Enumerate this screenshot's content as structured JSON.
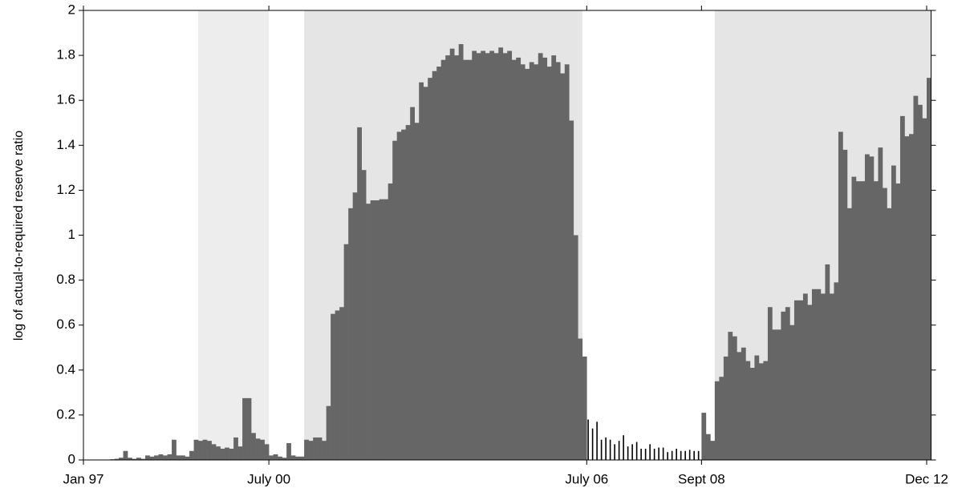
{
  "chart_data": {
    "type": "bar",
    "ylabel": "log of actual-to-required reserve ratio",
    "categories": [
      "Jan 97",
      null,
      null,
      null,
      null,
      null,
      null,
      null,
      null,
      null,
      null,
      null,
      null,
      null,
      null,
      null,
      null,
      null,
      null,
      null,
      null,
      null,
      null,
      null,
      null,
      null,
      null,
      null,
      null,
      null,
      null,
      null,
      null,
      null,
      null,
      null,
      null,
      null,
      null,
      null,
      null,
      null,
      "July 00",
      null,
      null,
      null,
      null,
      null,
      null,
      null,
      null,
      null,
      null,
      null,
      null,
      null,
      null,
      null,
      null,
      null,
      null,
      null,
      null,
      null,
      null,
      null,
      null,
      null,
      null,
      null,
      null,
      null,
      null,
      null,
      null,
      null,
      null,
      null,
      null,
      null,
      null,
      null,
      null,
      null,
      null,
      null,
      null,
      null,
      null,
      null,
      null,
      null,
      null,
      null,
      null,
      null,
      null,
      null,
      null,
      null,
      null,
      null,
      null,
      null,
      null,
      null,
      null,
      null,
      null,
      null,
      null,
      null,
      null,
      null,
      "July 06",
      null,
      null,
      null,
      null,
      null,
      null,
      null,
      null,
      null,
      null,
      null,
      null,
      null,
      null,
      null,
      null,
      null,
      null,
      null,
      null,
      null,
      null,
      null,
      null,
      null,
      "Sept 08",
      null,
      null,
      null,
      null,
      null,
      null,
      null,
      null,
      null,
      null,
      null,
      null,
      null,
      null,
      null,
      null,
      null,
      null,
      null,
      null,
      null,
      null,
      null,
      null,
      null,
      null,
      null,
      null,
      null,
      null,
      null,
      null,
      null,
      null,
      null,
      null,
      null,
      null,
      null,
      null,
      null,
      null,
      null,
      null,
      null,
      null,
      null,
      null,
      null,
      null,
      "Dec 12"
    ],
    "values": [
      0,
      0,
      0,
      0,
      0,
      0,
      0.003,
      0.005,
      0.01,
      0.04,
      0.01,
      0.005,
      0.01,
      0.005,
      0.02,
      0.015,
      0.02,
      0.025,
      0.02,
      0.025,
      0.09,
      0.02,
      0.02,
      0.015,
      0.04,
      0.09,
      0.085,
      0.09,
      0.085,
      0.07,
      0.06,
      0.05,
      0.055,
      0.05,
      0.1,
      0.06,
      0.275,
      0.275,
      0.12,
      0.095,
      0.09,
      0.07,
      0.02,
      0.025,
      0.015,
      0.01,
      0.075,
      0.02,
      0.015,
      0.015,
      0.09,
      0.085,
      0.1,
      0.1,
      0.085,
      0.24,
      0.65,
      0.665,
      0.68,
      0.96,
      1.12,
      1.19,
      1.48,
      1.29,
      1.14,
      1.155,
      1.155,
      1.16,
      1.16,
      1.23,
      1.42,
      1.46,
      1.47,
      1.49,
      1.57,
      1.5,
      1.68,
      1.66,
      1.7,
      1.73,
      1.75,
      1.78,
      1.8,
      1.83,
      1.8,
      1.85,
      1.78,
      1.78,
      1.82,
      1.81,
      1.82,
      1.81,
      1.82,
      1.81,
      1.835,
      1.81,
      1.82,
      1.78,
      1.79,
      1.76,
      1.74,
      1.77,
      1.76,
      1.81,
      1.79,
      1.75,
      1.8,
      1.77,
      1.72,
      1.76,
      1.51,
      1.0,
      0.54,
      0.46,
      0.18,
      0.14,
      0.17,
      0.09,
      0.1,
      0.09,
      0.07,
      0.085,
      0.11,
      0.06,
      0.07,
      0.08,
      0.05,
      0.05,
      0.07,
      0.05,
      0.055,
      0.055,
      0.035,
      0.04,
      0.05,
      0.04,
      0.04,
      0.045,
      0.04,
      0.04,
      0.21,
      0.115,
      0.085,
      0.35,
      0.37,
      0.46,
      0.57,
      0.55,
      0.48,
      0.5,
      0.44,
      0.41,
      0.465,
      0.43,
      0.44,
      0.68,
      0.58,
      0.58,
      0.66,
      0.68,
      0.6,
      0.71,
      0.71,
      0.74,
      0.69,
      0.76,
      0.76,
      0.74,
      0.87,
      0.74,
      0.79,
      1.46,
      1.38,
      1.12,
      1.26,
      1.24,
      1.24,
      1.36,
      1.35,
      1.24,
      1.39,
      1.21,
      1.12,
      1.31,
      1.23,
      1.53,
      1.44,
      1.45,
      1.62,
      1.58,
      1.52,
      1.7
    ],
    "color": "#666666",
    "thin_bars": {
      "from": 114,
      "to": 139,
      "color": "#000000"
    },
    "bands": [
      {
        "from": 26,
        "to": 42,
        "color": "#ededed"
      },
      {
        "from": 50,
        "to": 113,
        "color": "#e5e5e5"
      },
      {
        "from": 143,
        "to": 192,
        "color": "#e5e5e5"
      }
    ],
    "ylim": [
      0,
      2
    ],
    "yticks": [
      0,
      0.2,
      0.4,
      0.6,
      0.8,
      1,
      1.2,
      1.4,
      1.6,
      1.8,
      2
    ]
  }
}
